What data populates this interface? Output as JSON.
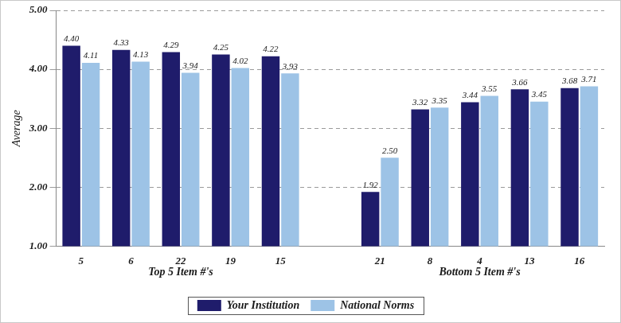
{
  "chart_data": {
    "type": "bar",
    "y_label": "Average",
    "categories": [
      "5",
      "6",
      "22",
      "19",
      "15",
      null,
      "21",
      "8",
      "4",
      "13",
      "16"
    ],
    "x_groups": [
      {
        "label": "Top 5 Item #'s",
        "categories": [
          "5",
          "6",
          "22",
          "19",
          "15"
        ]
      },
      {
        "label": "Bottom 5 Item #'s",
        "categories": [
          "21",
          "8",
          "4",
          "13",
          "16"
        ]
      }
    ],
    "series": [
      {
        "name": "Your Institution",
        "color": "#1f1c6b",
        "values": [
          4.4,
          4.33,
          4.29,
          4.25,
          4.22,
          null,
          1.92,
          3.32,
          3.44,
          3.66,
          3.68
        ],
        "value_labels": [
          "4.40",
          "4.33",
          "4.29",
          "4.25",
          "4.22",
          null,
          "1.92",
          "3.32",
          "3.44",
          "3.66",
          "3.68"
        ]
      },
      {
        "name": "National Norms",
        "color": "#9dc3e6",
        "values": [
          4.11,
          4.13,
          3.94,
          4.02,
          3.93,
          null,
          2.5,
          3.35,
          3.55,
          3.45,
          3.71
        ],
        "value_labels": [
          "4.11",
          "4.13",
          "3.94",
          "4.02",
          "3.93",
          null,
          "2.50",
          "3.35",
          "3.55",
          "3.45",
          "3.71"
        ]
      }
    ],
    "ylim": [
      1,
      5
    ],
    "yticks": [
      {
        "value": 1,
        "label": "1.00"
      },
      {
        "value": 2,
        "label": "2.00"
      },
      {
        "value": 3,
        "label": "3.00"
      },
      {
        "value": 4,
        "label": "4.00"
      },
      {
        "value": 5,
        "label": "5.00"
      }
    ],
    "grid": true,
    "legend": "bottom",
    "data_labels": true
  }
}
